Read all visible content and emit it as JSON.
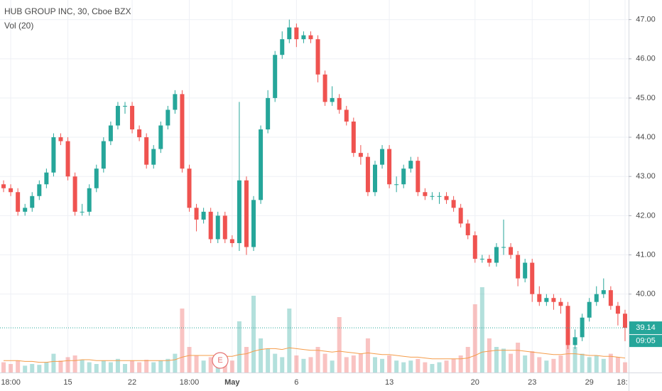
{
  "chart_data": {
    "type": "candlestick",
    "title": "HUB GROUP INC, 30, Cboe BZX",
    "subtitle": "Vol (20)",
    "categories": [
      null,
      "18:00",
      null,
      null,
      null,
      null,
      null,
      null,
      null,
      "15",
      null,
      null,
      null,
      null,
      null,
      null,
      null,
      null,
      "22",
      null,
      null,
      null,
      null,
      null,
      null,
      null,
      "18:00",
      null,
      null,
      null,
      null,
      null,
      "May",
      null,
      null,
      null,
      null,
      null,
      null,
      null,
      null,
      "6",
      null,
      null,
      null,
      null,
      null,
      null,
      null,
      null,
      null,
      null,
      null,
      null,
      "13",
      null,
      null,
      null,
      null,
      null,
      null,
      null,
      null,
      null,
      null,
      null,
      "20",
      null,
      null,
      null,
      null,
      null,
      null,
      null,
      "23",
      null,
      null,
      null,
      null,
      null,
      null,
      null,
      "29",
      null,
      null,
      null,
      null,
      "18:"
    ],
    "open": [
      42.8,
      42.7,
      42.6,
      42.1,
      42.2,
      42.5,
      42.8,
      43.1,
      44.0,
      43.9,
      43.0,
      42.1,
      42.1,
      42.7,
      43.2,
      43.9,
      44.3,
      44.8,
      44.8,
      44.2,
      44.0,
      43.3,
      43.7,
      44.3,
      44.7,
      45.1,
      43.2,
      42.2,
      41.9,
      42.1,
      41.4,
      42.0,
      41.4,
      41.3,
      42.9,
      41.2,
      42.4,
      44.2,
      45.0,
      46.1,
      46.5,
      46.8,
      46.5,
      46.6,
      46.5,
      45.6,
      44.9,
      45.0,
      44.7,
      44.4,
      43.6,
      43.5,
      42.6,
      43.3,
      43.7,
      42.8,
      42.8,
      43.2,
      43.4,
      42.6,
      42.5,
      42.5,
      42.5,
      42.4,
      42.2,
      41.8,
      41.5,
      40.9,
      40.9,
      40.8,
      41.2,
      41.2,
      41.0,
      40.4,
      40.8,
      40.0,
      39.8,
      39.9,
      39.8,
      39.7,
      38.7,
      38.9,
      39.4,
      39.8,
      40.0,
      40.1,
      39.7,
      39.5
    ],
    "high": [
      42.9,
      42.8,
      42.7,
      42.3,
      42.6,
      42.9,
      43.2,
      44.1,
      44.1,
      44.0,
      43.1,
      42.3,
      42.8,
      43.3,
      44.0,
      44.4,
      44.9,
      44.9,
      44.9,
      44.3,
      44.1,
      43.8,
      44.4,
      44.8,
      45.2,
      45.2,
      43.3,
      42.3,
      42.2,
      42.2,
      42.1,
      42.1,
      41.5,
      44.9,
      43.0,
      42.5,
      44.3,
      45.2,
      46.2,
      46.7,
      47.0,
      46.9,
      46.7,
      46.7,
      46.6,
      45.7,
      45.3,
      45.1,
      44.8,
      44.5,
      43.8,
      43.6,
      43.4,
      43.8,
      43.8,
      43.0,
      43.3,
      43.5,
      43.5,
      42.7,
      42.6,
      42.6,
      42.6,
      42.5,
      42.3,
      41.9,
      41.6,
      41.0,
      41.0,
      41.3,
      41.9,
      41.3,
      41.1,
      40.9,
      40.9,
      40.2,
      40.0,
      40.0,
      39.9,
      39.8,
      39.1,
      39.5,
      39.9,
      40.2,
      40.4,
      40.2,
      39.8,
      39.6
    ],
    "low": [
      42.6,
      42.5,
      42.0,
      42.0,
      42.1,
      42.4,
      42.7,
      43.0,
      43.8,
      42.9,
      42.0,
      42.0,
      42.0,
      42.6,
      43.1,
      43.8,
      44.2,
      44.6,
      44.1,
      43.9,
      43.2,
      43.2,
      43.6,
      44.2,
      44.6,
      43.1,
      42.1,
      41.6,
      41.8,
      41.3,
      41.3,
      41.3,
      41.2,
      41.1,
      41.0,
      41.1,
      42.3,
      44.1,
      44.9,
      46.0,
      46.4,
      46.3,
      46.4,
      46.4,
      45.4,
      44.8,
      44.8,
      44.6,
      44.3,
      43.5,
      43.3,
      42.5,
      42.5,
      43.2,
      42.7,
      42.6,
      42.7,
      43.1,
      42.5,
      42.4,
      42.4,
      42.3,
      42.3,
      42.1,
      41.7,
      41.4,
      40.8,
      40.8,
      40.7,
      40.7,
      41.0,
      40.9,
      40.2,
      40.3,
      39.8,
      39.7,
      39.7,
      39.6,
      39.5,
      38.6,
      38.6,
      38.8,
      39.3,
      39.7,
      39.9,
      39.6,
      39.2,
      38.8
    ],
    "close": [
      42.7,
      42.6,
      42.1,
      42.2,
      42.5,
      42.8,
      43.1,
      44.0,
      43.9,
      43.0,
      42.1,
      42.1,
      42.7,
      43.2,
      43.9,
      44.3,
      44.8,
      44.8,
      44.2,
      44.0,
      43.3,
      43.7,
      44.3,
      44.7,
      45.1,
      43.2,
      42.2,
      41.9,
      42.1,
      41.4,
      42.0,
      41.4,
      41.3,
      42.9,
      41.2,
      42.4,
      44.2,
      45.0,
      46.1,
      46.5,
      46.8,
      46.5,
      46.6,
      46.5,
      45.6,
      44.9,
      45.0,
      44.7,
      44.4,
      43.6,
      43.5,
      42.6,
      43.3,
      43.7,
      42.8,
      42.8,
      43.2,
      43.4,
      42.6,
      42.5,
      42.5,
      42.5,
      42.4,
      42.2,
      41.8,
      41.5,
      40.9,
      40.9,
      40.8,
      41.2,
      41.2,
      41.0,
      40.4,
      40.8,
      40.0,
      39.8,
      39.9,
      39.8,
      39.7,
      38.7,
      38.9,
      39.4,
      39.8,
      40.0,
      40.1,
      39.7,
      39.5,
      39.14
    ],
    "volume": [
      12,
      10,
      14,
      8,
      10,
      9,
      12,
      22,
      14,
      18,
      20,
      15,
      12,
      10,
      14,
      12,
      16,
      10,
      14,
      12,
      15,
      12,
      14,
      16,
      22,
      75,
      30,
      20,
      14,
      18,
      16,
      12,
      14,
      60,
      30,
      90,
      40,
      28,
      22,
      18,
      75,
      20,
      16,
      18,
      30,
      22,
      14,
      65,
      18,
      20,
      22,
      40,
      18,
      16,
      20,
      14,
      12,
      14,
      16,
      12,
      10,
      12,
      14,
      16,
      20,
      30,
      80,
      100,
      40,
      30,
      28,
      22,
      35,
      20,
      25,
      18,
      14,
      16,
      20,
      55,
      30,
      22,
      18,
      20,
      16,
      22,
      18,
      12
    ],
    "volume_ma": [
      14,
      14,
      14,
      13,
      13,
      12,
      12,
      13,
      13,
      14,
      14,
      15,
      15,
      14,
      14,
      14,
      14,
      14,
      14,
      14,
      14,
      14,
      14,
      14,
      15,
      18,
      20,
      20,
      20,
      20,
      20,
      19,
      19,
      21,
      22,
      25,
      27,
      28,
      28,
      27,
      29,
      28,
      27,
      26,
      26,
      25,
      24,
      25,
      24,
      23,
      22,
      23,
      22,
      21,
      21,
      20,
      19,
      18,
      18,
      17,
      16,
      16,
      16,
      16,
      16,
      17,
      20,
      24,
      25,
      26,
      26,
      26,
      26,
      25,
      24,
      23,
      22,
      21,
      21,
      22,
      22,
      21,
      20,
      20,
      19,
      19,
      18,
      17
    ],
    "up_color": "#26a69a",
    "down_color": "#ef5350",
    "ma_color": "#f59c4a",
    "last_price_color": "#26a69a",
    "ylim": [
      38,
      47.5
    ],
    "yticks": [
      {
        "value": 40,
        "label": "40.00"
      },
      {
        "value": 41,
        "label": "41.00"
      },
      {
        "value": 42,
        "label": "42.00"
      },
      {
        "value": 43,
        "label": "43.00"
      },
      {
        "value": 44,
        "label": "44.00"
      },
      {
        "value": 45,
        "label": "45.00"
      },
      {
        "value": 46,
        "label": "46.00"
      },
      {
        "value": 47,
        "label": "47.00"
      }
    ],
    "y2lim": [
      0,
      100
    ],
    "grid": true,
    "countdown": "09:05",
    "event_label": "E"
  }
}
